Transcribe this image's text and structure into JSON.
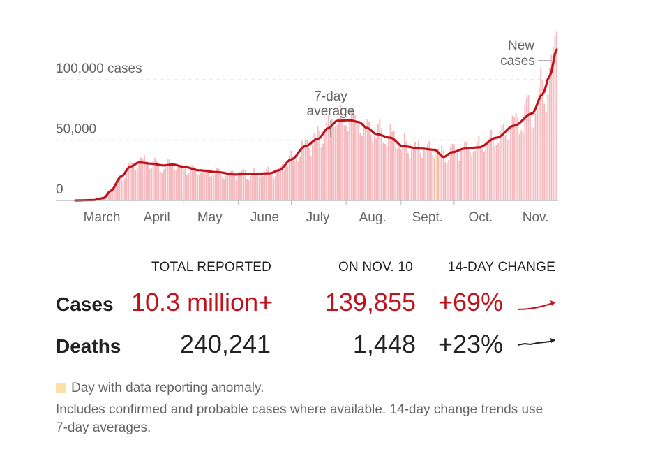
{
  "chart_data": {
    "type": "bar",
    "y_tick_labels": [
      {
        "value": 100000,
        "label": "100,000 cases"
      },
      {
        "value": 50000,
        "label": "50,000"
      },
      {
        "value": 0,
        "label": "0"
      }
    ],
    "ylim": [
      0,
      140000
    ],
    "x_months": [
      {
        "label": "March",
        "day": 0
      },
      {
        "label": "April",
        "day": 31
      },
      {
        "label": "May",
        "day": 61
      },
      {
        "label": "June",
        "day": 92
      },
      {
        "label": "July",
        "day": 122
      },
      {
        "label": "Aug.",
        "day": 153
      },
      {
        "label": "Sept.",
        "day": 184
      },
      {
        "label": "Oct.",
        "day": 214
      },
      {
        "label": "Nov.",
        "day": 245
      }
    ],
    "x_tick_label_day_offset": 15,
    "days_shown": 255,
    "avg_keypoints": [
      [
        0,
        0
      ],
      [
        10,
        300
      ],
      [
        16,
        2000
      ],
      [
        20,
        8000
      ],
      [
        26,
        20000
      ],
      [
        31,
        28000
      ],
      [
        36,
        31500
      ],
      [
        43,
        30500
      ],
      [
        50,
        29000
      ],
      [
        55,
        29800
      ],
      [
        61,
        28000
      ],
      [
        70,
        25000
      ],
      [
        80,
        23500
      ],
      [
        90,
        21500
      ],
      [
        100,
        22000
      ],
      [
        110,
        22500
      ],
      [
        115,
        25000
      ],
      [
        122,
        34000
      ],
      [
        130,
        45000
      ],
      [
        137,
        51000
      ],
      [
        143,
        60000
      ],
      [
        148,
        66000
      ],
      [
        155,
        66500
      ],
      [
        160,
        65000
      ],
      [
        165,
        60000
      ],
      [
        170,
        55000
      ],
      [
        178,
        52000
      ],
      [
        185,
        45000
      ],
      [
        195,
        43000
      ],
      [
        203,
        42000
      ],
      [
        208,
        36000
      ],
      [
        213,
        40000
      ],
      [
        220,
        43000
      ],
      [
        228,
        44000
      ],
      [
        238,
        52000
      ],
      [
        248,
        62000
      ],
      [
        258,
        72000
      ],
      [
        264,
        88000
      ],
      [
        268,
        103000
      ],
      [
        272,
        125000
      ]
    ],
    "daily_peak_value": 139855,
    "anomaly_days": [
      204
    ],
    "annotations": {
      "avg_label": [
        "7-day",
        "average"
      ],
      "bars_label": [
        "New",
        "cases"
      ]
    },
    "colors": {
      "bar": "#f4b8bd",
      "line": "#c1111a",
      "anomaly": "#fde0a8",
      "grid": "#d9d9d9"
    }
  },
  "table": {
    "headers": {
      "total": "TOTAL REPORTED",
      "on_day": "ON NOV. 10",
      "change": "14-DAY CHANGE"
    },
    "cases": {
      "label": "Cases",
      "total": "10.3 million+",
      "on_day": "139,855",
      "change": "+69%",
      "color": "#c1111a"
    },
    "deaths": {
      "label": "Deaths",
      "total": "240,241",
      "on_day": "1,448",
      "change": "+23%",
      "color": "#222222"
    }
  },
  "legend": {
    "anomaly": "Day with data reporting anomaly."
  },
  "note": "Includes confirmed and probable cases where available. 14-day change trends use 7-day averages."
}
